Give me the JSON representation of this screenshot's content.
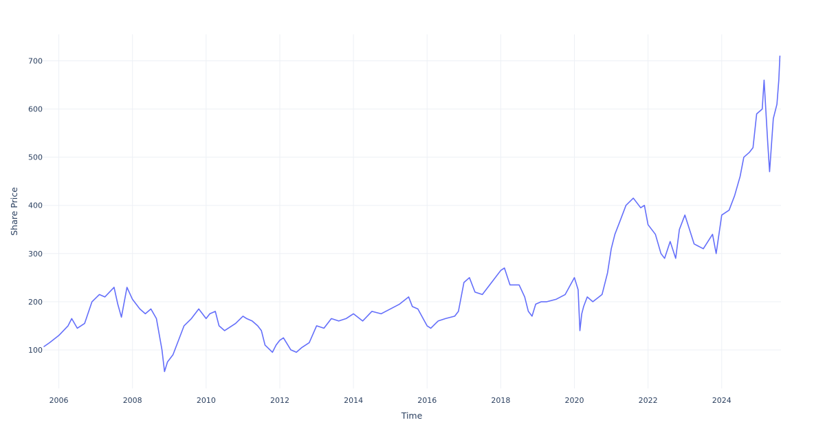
{
  "chart_data": {
    "type": "line",
    "title": "",
    "xlabel": "Time",
    "ylabel": "Share Price",
    "x_ticks": [
      "2006",
      "2008",
      "2010",
      "2012",
      "2014",
      "2016",
      "2018",
      "2020",
      "2022",
      "2024"
    ],
    "y_ticks": [
      "100",
      "200",
      "300",
      "400",
      "500",
      "600",
      "700"
    ],
    "xlim": [
      2005.56,
      2025.61
    ],
    "ylim": [
      20,
      755
    ],
    "grid": true,
    "legend": "none",
    "series": [
      {
        "color": "#636efa",
        "x": [
          2005.6,
          2005.75,
          2006.0,
          2006.25,
          2006.35,
          2006.5,
          2006.7,
          2006.9,
          2007.1,
          2007.25,
          2007.5,
          2007.6,
          2007.7,
          2007.85,
          2008.0,
          2008.2,
          2008.35,
          2008.5,
          2008.65,
          2008.8,
          2008.87,
          2008.95,
          2009.1,
          2009.25,
          2009.4,
          2009.6,
          2009.8,
          2010.0,
          2010.1,
          2010.25,
          2010.35,
          2010.5,
          2010.6,
          2010.8,
          2011.0,
          2011.1,
          2011.25,
          2011.4,
          2011.5,
          2011.6,
          2011.8,
          2011.9,
          2012.0,
          2012.1,
          2012.3,
          2012.45,
          2012.6,
          2012.8,
          2013.0,
          2013.2,
          2013.4,
          2013.6,
          2013.8,
          2014.0,
          2014.25,
          2014.5,
          2014.75,
          2015.0,
          2015.25,
          2015.5,
          2015.6,
          2015.75,
          2016.0,
          2016.1,
          2016.3,
          2016.5,
          2016.75,
          2016.85,
          2017.0,
          2017.15,
          2017.3,
          2017.5,
          2017.75,
          2018.0,
          2018.1,
          2018.25,
          2018.5,
          2018.65,
          2018.75,
          2018.85,
          2018.95,
          2019.1,
          2019.25,
          2019.5,
          2019.75,
          2020.0,
          2020.1,
          2020.15,
          2020.2,
          2020.25,
          2020.35,
          2020.5,
          2020.75,
          2020.9,
          2021.0,
          2021.1,
          2021.25,
          2021.4,
          2021.6,
          2021.8,
          2021.9,
          2022.0,
          2022.2,
          2022.35,
          2022.45,
          2022.6,
          2022.75,
          2022.85,
          2023.0,
          2023.25,
          2023.5,
          2023.75,
          2023.85,
          2024.0,
          2024.2,
          2024.35,
          2024.5,
          2024.6,
          2024.75,
          2024.85,
          2024.95,
          2025.1,
          2025.15,
          2025.25,
          2025.3,
          2025.4,
          2025.5,
          2025.55,
          2025.58
        ],
        "y": [
          107,
          115,
          130,
          150,
          165,
          145,
          155,
          200,
          215,
          210,
          230,
          195,
          168,
          230,
          205,
          185,
          175,
          185,
          165,
          100,
          55,
          75,
          90,
          120,
          150,
          165,
          185,
          165,
          175,
          180,
          150,
          140,
          145,
          155,
          170,
          165,
          160,
          150,
          140,
          110,
          95,
          110,
          120,
          125,
          100,
          95,
          105,
          115,
          150,
          145,
          165,
          160,
          165,
          175,
          160,
          180,
          175,
          185,
          195,
          210,
          190,
          185,
          150,
          145,
          160,
          165,
          170,
          180,
          240,
          250,
          220,
          215,
          240,
          265,
          270,
          235,
          235,
          210,
          180,
          170,
          195,
          200,
          200,
          205,
          215,
          250,
          225,
          140,
          175,
          190,
          210,
          200,
          215,
          260,
          310,
          340,
          370,
          400,
          415,
          395,
          400,
          360,
          340,
          300,
          290,
          325,
          290,
          350,
          380,
          320,
          310,
          340,
          300,
          380,
          390,
          420,
          460,
          500,
          510,
          520,
          590,
          600,
          660,
          530,
          470,
          580,
          610,
          660,
          710
        ]
      }
    ]
  }
}
